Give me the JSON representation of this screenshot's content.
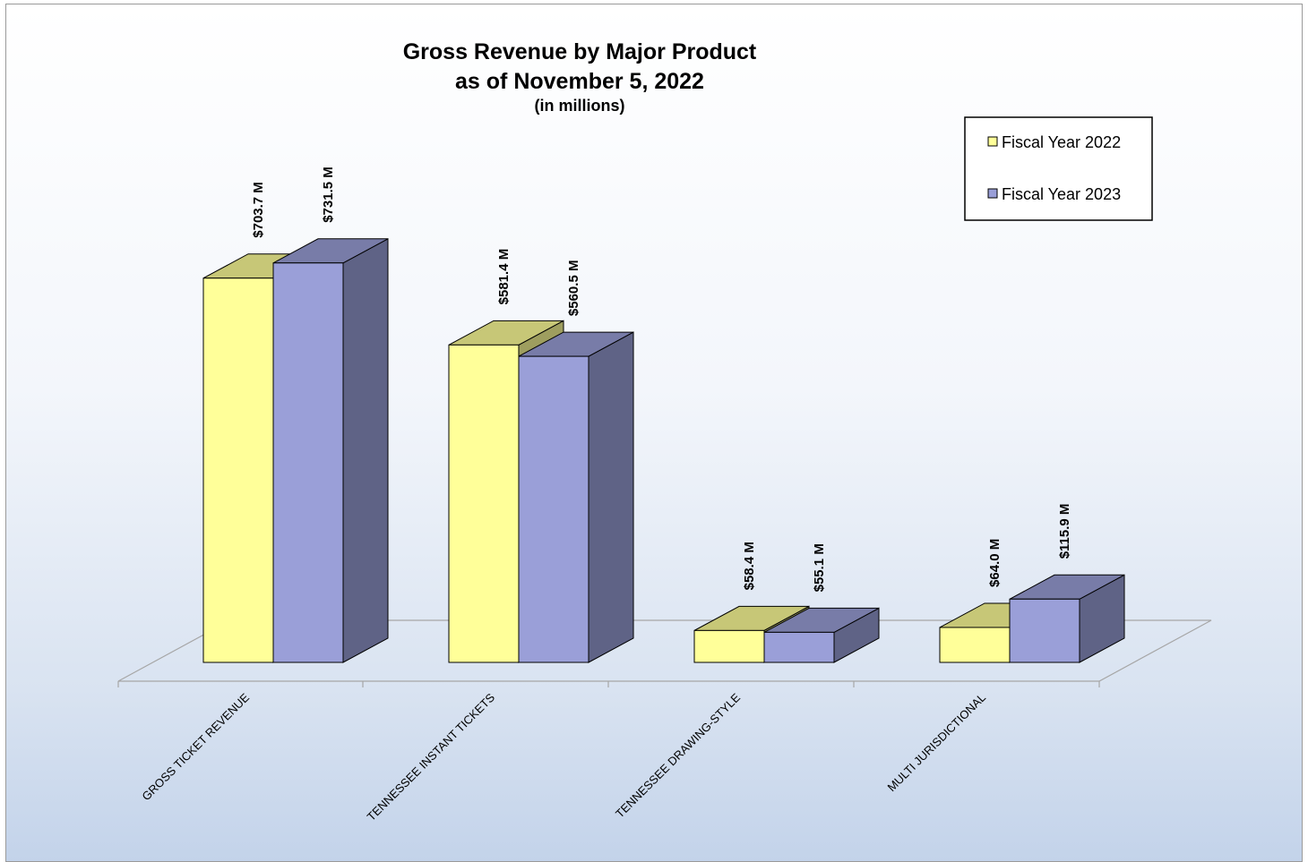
{
  "chart_data": {
    "type": "bar",
    "title": "Gross Revenue by Major Product",
    "subtitle": "as of November 5, 2022",
    "units_note": "(in millions)",
    "categories": [
      "GROSS TICKET REVENUE",
      "TENNESSEE INSTANT TICKETS",
      "TENNESSEE DRAWING-STYLE",
      "MULTI JURISDICTIONAL"
    ],
    "series": [
      {
        "name": "Fiscal Year 2022",
        "values": [
          703.7,
          581.4,
          58.4,
          64.0
        ],
        "labels": [
          "$703.7 M",
          "$581.4 M",
          "$58.4 M",
          "$64.0 M"
        ],
        "color": "#ffff99"
      },
      {
        "name": "Fiscal Year 2023",
        "values": [
          731.5,
          560.5,
          55.1,
          115.9
        ],
        "labels": [
          "$731.5 M",
          "$560.5 M",
          "$55.1 M",
          "$115.9 M"
        ],
        "color": "#9a9fd8"
      }
    ],
    "legend_position": "top-right",
    "grid": false,
    "style": "3d-clustered-column"
  }
}
